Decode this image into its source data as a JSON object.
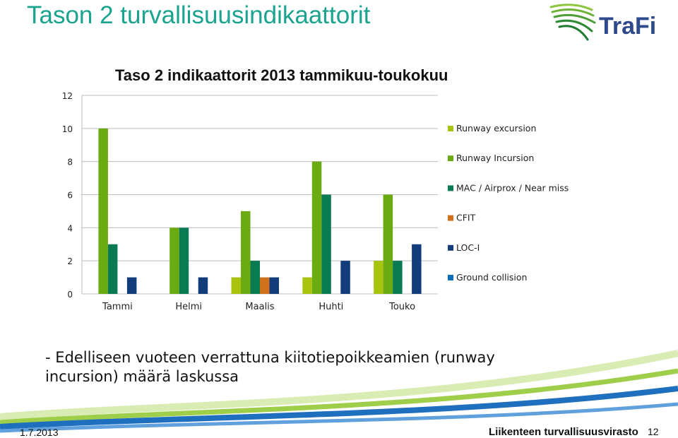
{
  "slide": {
    "title": "Tason 2 turvallisuusindikaattorit",
    "logo_text": "TraFi",
    "body_text": "- Edelliseen vuoteen verrattuna kiitotiepoikkeamien (runway incursion) määrä laskussa",
    "footer_date": "1.7.2013",
    "footer_org": "Liikenteen turvallisuusvirasto",
    "page_number": "12",
    "colors": {
      "title": "#1aa38e",
      "logo_text": "#2e4a8c",
      "logo_swoosh": "#7ab51d"
    }
  },
  "chart_data": {
    "type": "bar",
    "title": "Taso 2 indikaattorit 2013 tammikuu-toukokuu",
    "categories": [
      "Tammi",
      "Helmi",
      "Maalis",
      "Huhti",
      "Touko"
    ],
    "ylim": [
      0,
      12
    ],
    "yticks": [
      "0",
      "2",
      "4",
      "6",
      "8",
      "10",
      "12"
    ],
    "grid": true,
    "legend_position": "right",
    "series": [
      {
        "name": "Runway excursion",
        "color": "#a9c40f",
        "values": [
          0,
          0,
          1,
          1,
          2
        ]
      },
      {
        "name": "Runway Incursion",
        "color": "#6aab12",
        "values": [
          10,
          4,
          5,
          8,
          6
        ]
      },
      {
        "name": "MAC / Airprox / Near miss",
        "color": "#0a7a52",
        "values": [
          3,
          4,
          2,
          6,
          2
        ]
      },
      {
        "name": "CFIT",
        "color": "#d0721b",
        "values": [
          0,
          0,
          1,
          0,
          0
        ]
      },
      {
        "name": "LOC-I",
        "color": "#133c7a",
        "values": [
          1,
          1,
          1,
          2,
          3
        ]
      },
      {
        "name": "Ground collision",
        "color": "#0f6fb5",
        "values": [
          0,
          0,
          0,
          0,
          0
        ]
      }
    ]
  }
}
